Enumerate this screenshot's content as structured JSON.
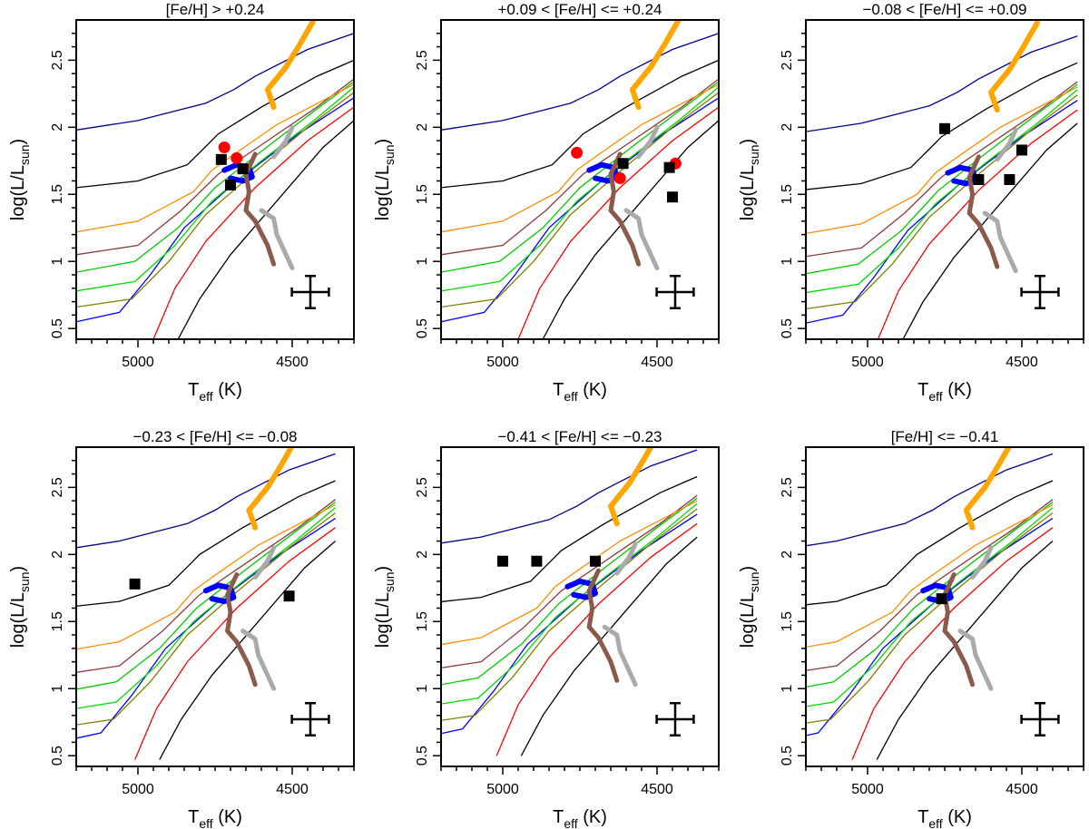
{
  "figure": {
    "x_axis_title": "T",
    "x_axis_subscript": "eff",
    "x_axis_unit": " (K)",
    "y_axis_title": "log(L/L",
    "y_axis_subscript": "sun",
    "y_axis_close": ")"
  },
  "chart_data": [
    {
      "type": "scatter",
      "title": "[Fe/H] > +0.24",
      "xlabel": "Teff (K)",
      "ylabel": "log(L/Lsun)",
      "xlim": [
        5200,
        4300
      ],
      "ylim": [
        0.42,
        2.8
      ],
      "xticks": [
        5000,
        4500
      ],
      "yticks": [
        0.5,
        1,
        1.5,
        2,
        2.5
      ],
      "series": [
        {
          "name": "red circles",
          "marker": "circle",
          "color": "#ff0000",
          "points": [
            [
              4720,
              1.85
            ],
            [
              4680,
              1.77
            ]
          ]
        },
        {
          "name": "black squares",
          "marker": "square",
          "color": "#000000",
          "points": [
            [
              4730,
              1.76
            ],
            [
              4660,
              1.69
            ],
            [
              4700,
              1.57
            ]
          ]
        }
      ],
      "error_bar": {
        "x_err": 60,
        "y_err": 0.12
      }
    },
    {
      "type": "scatter",
      "title": "+0.09 < [Fe/H] <= +0.24",
      "xlabel": "Teff (K)",
      "ylabel": "log(L/Lsun)",
      "xlim": [
        5200,
        4300
      ],
      "ylim": [
        0.42,
        2.8
      ],
      "xticks": [
        5000,
        4500
      ],
      "yticks": [
        0.5,
        1,
        1.5,
        2,
        2.5
      ],
      "series": [
        {
          "name": "red circles",
          "marker": "circle",
          "color": "#ff0000",
          "points": [
            [
              4760,
              1.81
            ],
            [
              4620,
              1.62
            ],
            [
              4440,
              1.73
            ]
          ]
        },
        {
          "name": "black squares",
          "marker": "square",
          "color": "#000000",
          "points": [
            [
              4610,
              1.73
            ],
            [
              4460,
              1.7
            ],
            [
              4450,
              1.48
            ]
          ]
        }
      ],
      "error_bar": {
        "x_err": 60,
        "y_err": 0.12
      }
    },
    {
      "type": "scatter",
      "title": "−0.08 < [Fe/H] <= +0.09",
      "xlabel": "Teff (K)",
      "ylabel": "log(L/Lsun)",
      "xlim": [
        5200,
        4300
      ],
      "ylim": [
        0.42,
        2.8
      ],
      "xticks": [
        5000,
        4500
      ],
      "yticks": [
        0.5,
        1,
        1.5,
        2,
        2.5
      ],
      "series": [
        {
          "name": "black squares",
          "marker": "square",
          "color": "#000000",
          "points": [
            [
              4750,
              1.99
            ],
            [
              4500,
              1.83
            ],
            [
              4640,
              1.61
            ],
            [
              4540,
              1.61
            ]
          ]
        }
      ],
      "error_bar": {
        "x_err": 60,
        "y_err": 0.12
      }
    },
    {
      "type": "scatter",
      "title": "−0.23 < [Fe/H] <= −0.08",
      "xlabel": "Teff (K)",
      "ylabel": "log(L/Lsun)",
      "xlim": [
        5200,
        4300
      ],
      "ylim": [
        0.42,
        2.8
      ],
      "xticks": [
        5000,
        4500
      ],
      "yticks": [
        0.5,
        1,
        1.5,
        2,
        2.5
      ],
      "series": [
        {
          "name": "black squares",
          "marker": "square",
          "color": "#000000",
          "points": [
            [
              5010,
              1.78
            ],
            [
              4510,
              1.69
            ]
          ]
        }
      ],
      "error_bar": {
        "x_err": 60,
        "y_err": 0.12
      }
    },
    {
      "type": "scatter",
      "title": "−0.41 < [Fe/H] <= −0.23",
      "xlabel": "Teff (K)",
      "ylabel": "log(L/Lsun)",
      "xlim": [
        5200,
        4300
      ],
      "ylim": [
        0.42,
        2.8
      ],
      "xticks": [
        5000,
        4500
      ],
      "yticks": [
        0.5,
        1,
        1.5,
        2,
        2.5
      ],
      "series": [
        {
          "name": "black squares",
          "marker": "square",
          "color": "#000000",
          "points": [
            [
              5000,
              1.95
            ],
            [
              4890,
              1.95
            ],
            [
              4700,
              1.95
            ]
          ]
        }
      ],
      "error_bar": {
        "x_err": 60,
        "y_err": 0.12
      }
    },
    {
      "type": "scatter",
      "title": "[Fe/H] <= −0.41",
      "xlabel": "Teff (K)",
      "ylabel": "log(L/Lsun)",
      "xlim": [
        5200,
        4300
      ],
      "ylim": [
        0.42,
        2.8
      ],
      "xticks": [
        5000,
        4500
      ],
      "yticks": [
        0.5,
        1,
        1.5,
        2,
        2.5
      ],
      "series": [
        {
          "name": "black squares",
          "marker": "square",
          "color": "#000000",
          "points": [
            [
              4760,
              1.67
            ]
          ]
        }
      ],
      "error_bar": {
        "x_err": 60,
        "y_err": 0.12
      }
    }
  ],
  "track_style": {
    "thin_colors": [
      "#000000",
      "#ff0000",
      "#0000ff",
      "#808000",
      "#00dd00",
      "#00cc00",
      "#8b3a3a",
      "#ff8c00",
      "#000000",
      "#00008b"
    ],
    "thick_colors": {
      "orange": "#ffa500",
      "blue": "#0000ff",
      "brown": "#8b5a4a",
      "gray": "#aaaaaa"
    }
  }
}
